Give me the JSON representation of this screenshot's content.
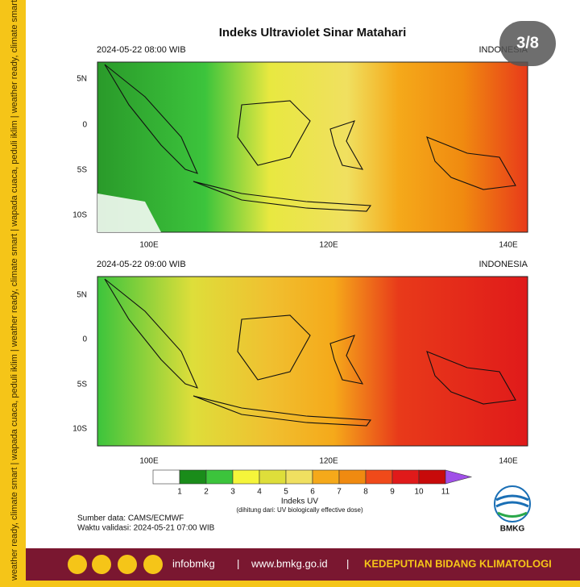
{
  "badge": "3/8",
  "title": "Indeks Ultraviolet Sinar Matahari",
  "maps": [
    {
      "timestamp": "2024-05-22  08:00 WIB",
      "region": "INDONESIA"
    },
    {
      "timestamp": "2024-05-22  09:00 WIB",
      "region": "INDONESIA"
    }
  ],
  "lat_labels": [
    "5N",
    "0",
    "5S",
    "10S"
  ],
  "lon_labels": [
    "100E",
    "120E",
    "140E"
  ],
  "colorbar": {
    "ticks": [
      1,
      2,
      3,
      4,
      5,
      6,
      7,
      8,
      9,
      10,
      11
    ],
    "colors": [
      "#ffffff",
      "#1a8c1a",
      "#3cc43c",
      "#f5f53a",
      "#dede3a",
      "#f0e060",
      "#f5a91a",
      "#f08a10",
      "#f04a1a",
      "#e01a1a",
      "#c80a0a",
      "#a050e8"
    ],
    "label": "Indeks UV",
    "note": "(dihitung dari: UV biologically effective dose)"
  },
  "source": "Sumber data: CAMS/ECMWF",
  "validity": "Waktu validasi: 2024-05-21 07:00 WIB",
  "logo": "BMKG",
  "sidebar": "weather ready, climate smart  |  wapada cuaca, peduli iklim  |  weather ready, climate smart  |  wapada cuaca, peduli iklim  |  weather ready, climate smart",
  "footer": {
    "handle": "infobmkg",
    "separator": "|",
    "website": "www.bmkg.go.id",
    "department": "KEDEPUTIAN BIDANG KLIMATOLOGI"
  }
}
